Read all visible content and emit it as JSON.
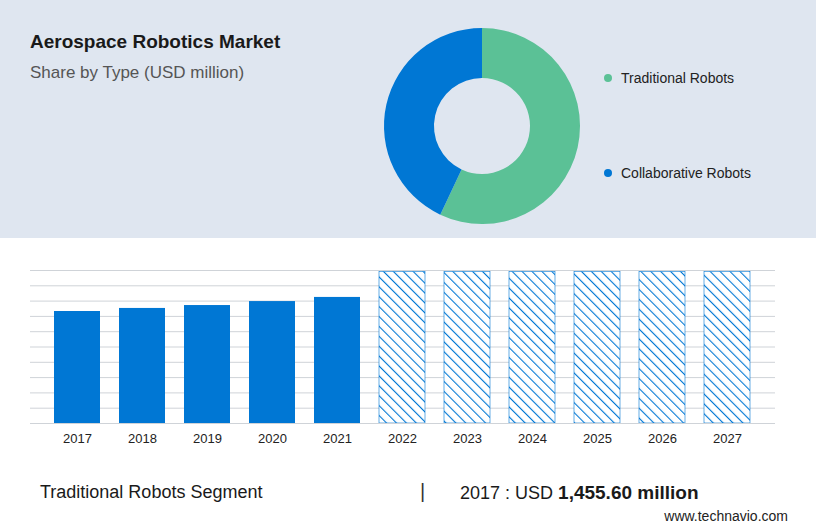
{
  "chart_data": [
    {
      "type": "pie",
      "title": "Aerospace Robotics Market",
      "subtitle": "Share by Type (USD million)",
      "categories": [
        "Traditional Robots",
        "Collaborative Robots"
      ],
      "values": [
        57,
        43
      ],
      "colors": [
        "#5bc196",
        "#0077d4"
      ],
      "legend": "right"
    },
    {
      "type": "bar",
      "categories": [
        "2017",
        "2018",
        "2019",
        "2020",
        "2021",
        "2022",
        "2023",
        "2024",
        "2025",
        "2026",
        "2027"
      ],
      "series": [
        {
          "color": "#0077d4",
          "values": [
            73.2,
            75.2,
            77.1,
            79.7,
            82.4,
            null,
            null,
            null,
            null,
            null,
            null
          ]
        },
        {
          "color": "#0077d4",
          "line_style": "hatched",
          "values": [
            null,
            null,
            null,
            null,
            null,
            99,
            99,
            99,
            99,
            99,
            99
          ]
        }
      ],
      "ylim": [
        0,
        100
      ],
      "yticks": [
        0,
        10,
        20,
        30,
        40,
        50,
        60,
        70,
        80,
        90,
        100
      ],
      "grid": true,
      "tick_labels": "x"
    }
  ],
  "footer": {
    "label": "Traditional Robots Segment",
    "separator": "|",
    "lead": "2017 : USD",
    "value": "1,455.60 million",
    "source": "www.technavio.com"
  }
}
